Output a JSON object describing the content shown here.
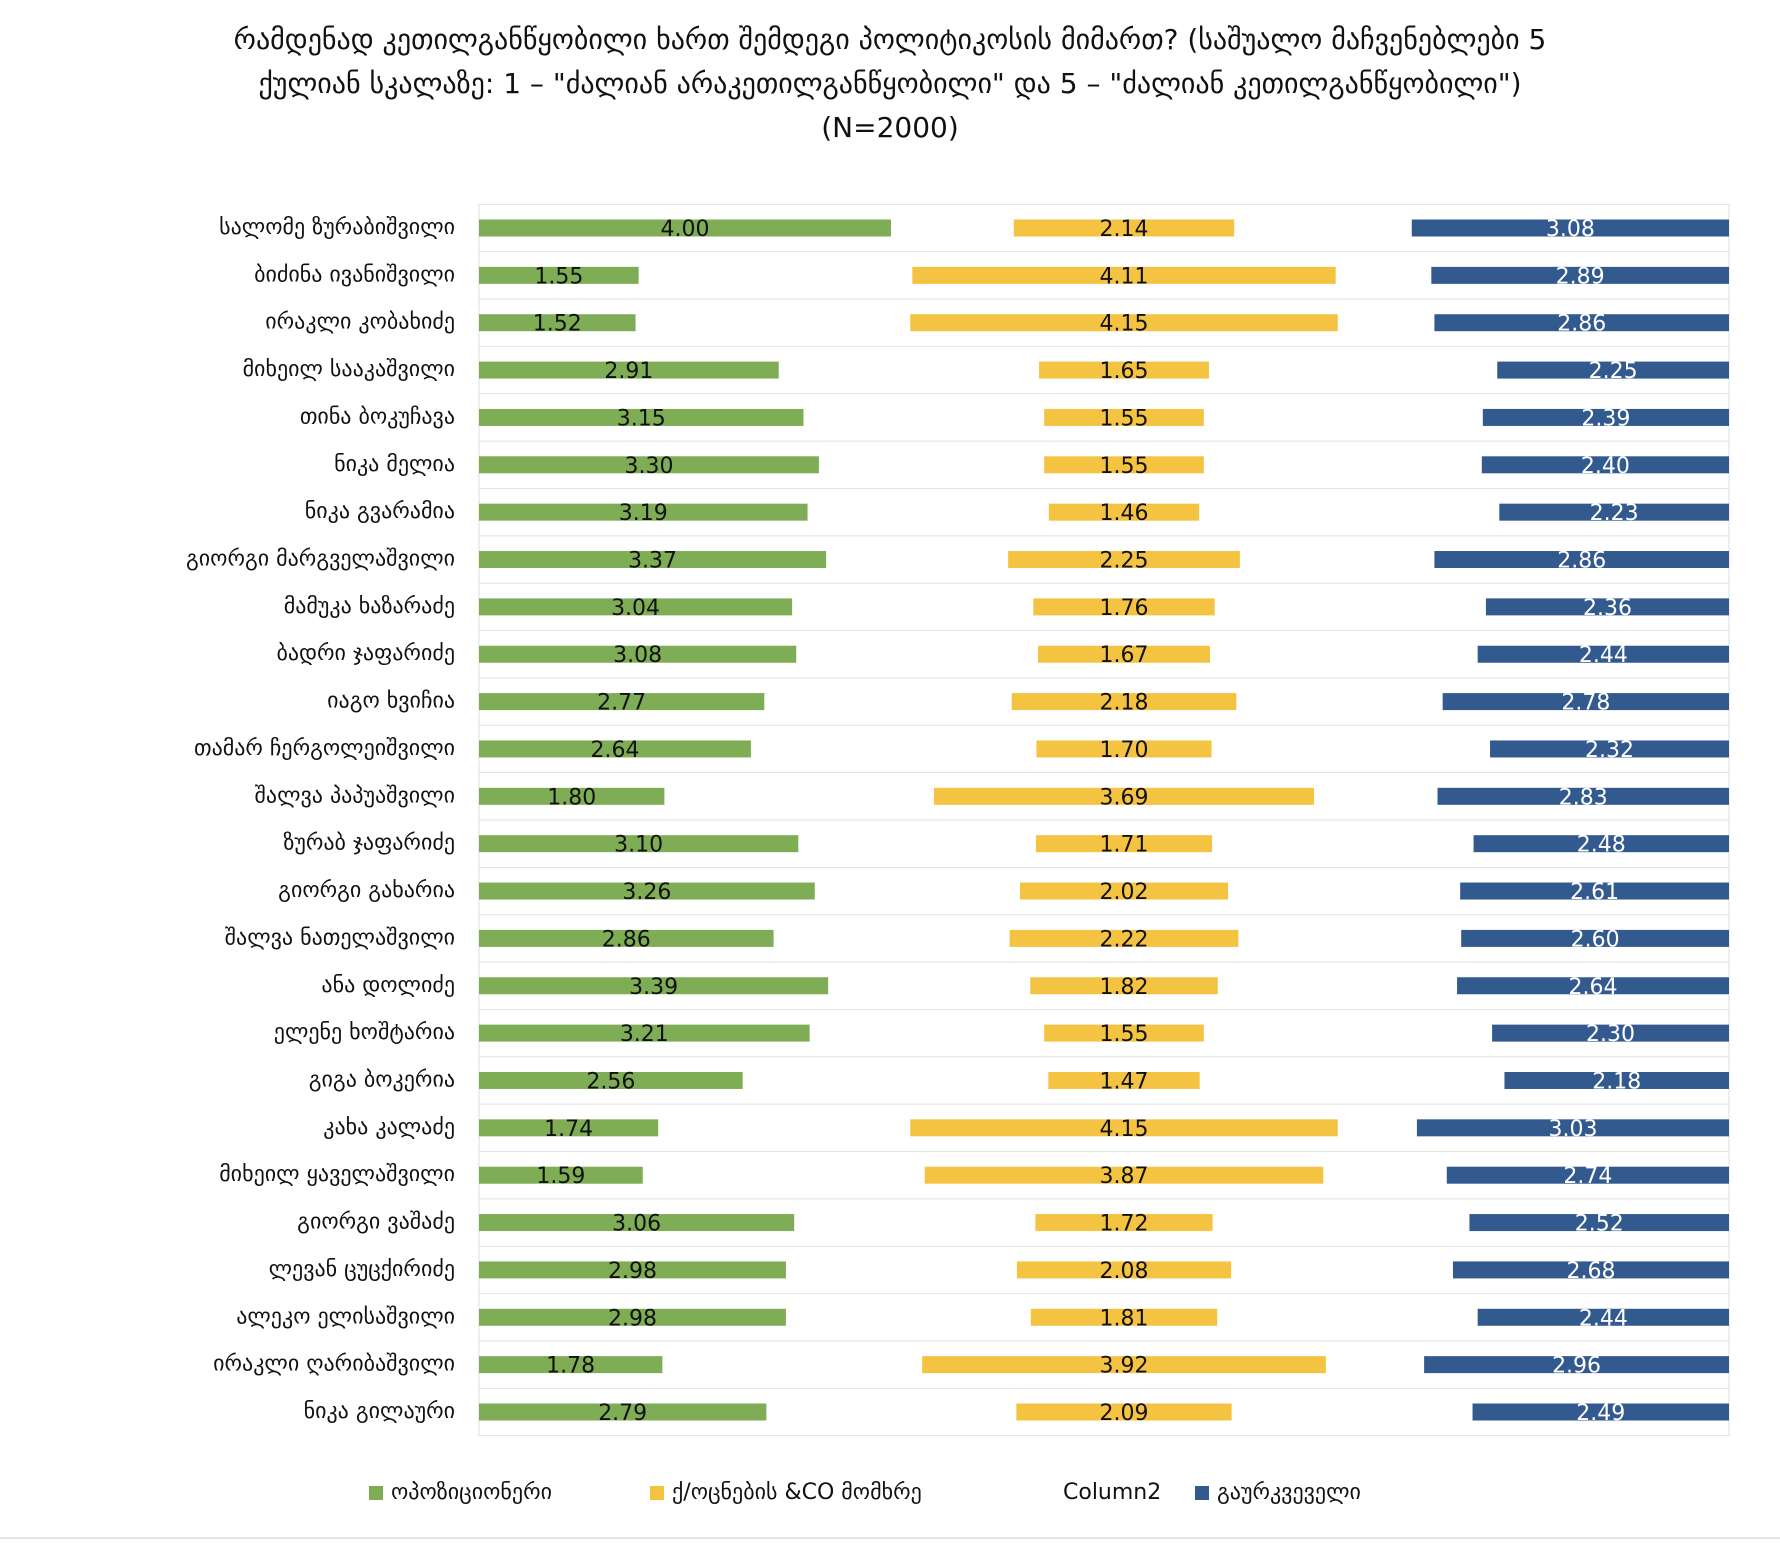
{
  "chart_data": {
    "type": "bar",
    "title": "რამდენად კეთილგანწყობილი ხართ შემდეგი პოლიტიკოსის მიმართ? (საშუალო მაჩვენებლები 5 ქულიან სკალაზე: 1 – \"ძალიან არაკეთილგანწყობილი\" და 5 – \"ძალიან კეთილგანწყობილი\") (N=2000)",
    "categories": [
      "სალომე ზურაბიშვილი",
      "ბიძინა ივანიშვილი",
      "ირაკლი კობახიძე",
      "მიხეილ სააკაშვილი",
      "თინა ბოკუჩავა",
      "ნიკა მელია",
      "ნიკა გვარამია",
      "გიორგი მარგველაშვილი",
      "მამუკა ხაზარაძე",
      "ბადრი ჯაფარიძე",
      "იაგო ხვიჩია",
      "თამარ ჩერგოლეიშვილი",
      "შალვა პაპუაშვილი",
      "ზურაბ ჯაფარიძე",
      "გიორგი გახარია",
      "შალვა ნათელაშვილი",
      "ანა დოლიძე",
      "ელენე ხოშტარია",
      "გიგა ბოკერია",
      "კახა კალაძე",
      "მიხეილ ყაველაშვილი",
      "გიორგი ვაშაძე",
      "ლევან ცუცქირიძე",
      "ალეკო ელისაშვილი",
      "ირაკლი ღარიბაშვილი",
      "ნიკა გილაური"
    ],
    "series": [
      {
        "name": "ოპოზიციონერი",
        "color": "#7fad55",
        "values": [
          4.0,
          1.55,
          1.52,
          2.91,
          3.15,
          3.3,
          3.19,
          3.37,
          3.04,
          3.08,
          2.77,
          2.64,
          1.8,
          3.1,
          3.26,
          2.86,
          3.39,
          3.21,
          2.56,
          1.74,
          1.59,
          3.06,
          2.98,
          2.98,
          1.78,
          2.79
        ],
        "value_labels": [
          "4.00",
          "1.55",
          "1.52",
          "2.91",
          "3.15",
          "3.30",
          "3.19",
          "3.37",
          "3.04",
          "3.08",
          "2.77",
          "2.64",
          "1.80",
          "3.10",
          "3.26",
          "2.86",
          "3.39",
          "3.21",
          "2.56",
          "1.74",
          "1.59",
          "3.06",
          "2.98",
          "2.98",
          "1.78",
          "2.79"
        ]
      },
      {
        "name": "ქ/ოცნების &CO მომხრე",
        "color": "#f5c342",
        "values": [
          2.14,
          4.11,
          4.15,
          1.65,
          1.55,
          1.55,
          1.46,
          2.25,
          1.76,
          1.67,
          2.18,
          1.7,
          3.69,
          1.71,
          2.02,
          2.22,
          1.82,
          1.55,
          1.47,
          4.15,
          3.87,
          1.72,
          2.08,
          1.81,
          3.92,
          2.09
        ],
        "value_labels": [
          "2.14",
          "4.11",
          "4.15",
          "1.65",
          "1.55",
          "1.55",
          "1.46",
          "2.25",
          "1.76",
          "1.67",
          "2.18",
          "1.70",
          "3.69",
          "1.71",
          "2.02",
          "2.22",
          "1.82",
          "1.55",
          "1.47",
          "4.15",
          "3.87",
          "1.72",
          "2.08",
          "1.81",
          "3.92",
          "2.09"
        ]
      },
      {
        "name": "Column2"
      },
      {
        "name": "გაურკვეველი",
        "color": "#335a8e",
        "values": [
          3.08,
          2.89,
          2.86,
          2.25,
          2.39,
          2.4,
          2.23,
          2.86,
          2.36,
          2.44,
          2.78,
          2.32,
          2.83,
          2.48,
          2.61,
          2.6,
          2.64,
          2.3,
          2.18,
          3.03,
          2.74,
          2.52,
          2.68,
          2.44,
          2.96,
          2.49
        ],
        "value_labels": [
          "3.08",
          "2.89",
          "2.86",
          "2.25",
          "2.39",
          "2.40",
          "2.23",
          "2.86",
          "2.36",
          "2.44",
          "2.78",
          "2.32",
          "2.83",
          "2.48",
          "2.61",
          "2.60",
          "2.64",
          "2.30",
          "2.18",
          "3.03",
          "2.74",
          "2.52",
          "2.68",
          "2.44",
          "2.96",
          "2.49"
        ]
      }
    ]
  }
}
